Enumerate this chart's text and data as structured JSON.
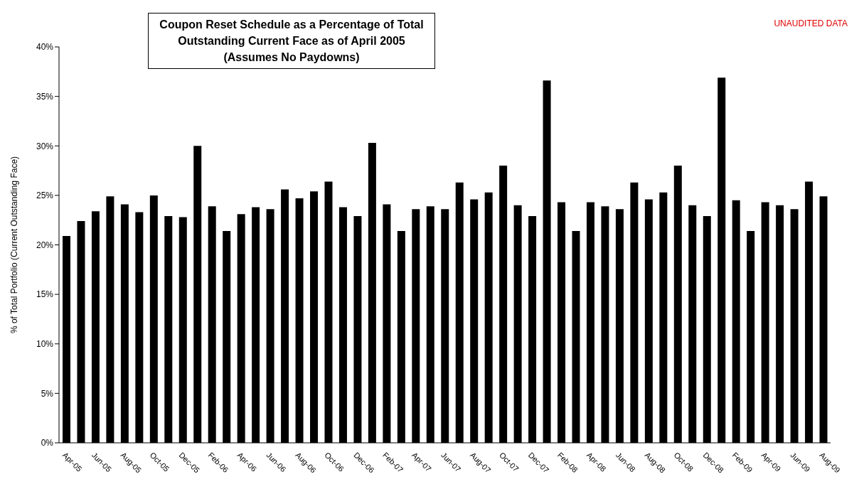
{
  "chart_data": {
    "type": "bar",
    "title": "Coupon Reset Schedule as a Percentage of Total Outstanding Current Face as of April 2005 (Assumes No Paydowns)",
    "ylabel": "% of Total Portfolio (Current Outstanding Face)",
    "annotations": [
      "UNAUDITED DATA"
    ],
    "categories": [
      "Apr-05",
      null,
      "Jun-05",
      null,
      "Aug-05",
      null,
      "Oct-05",
      null,
      "Dec-05",
      null,
      "Feb-06",
      null,
      "Apr-06",
      null,
      "Jun-06",
      null,
      "Aug-06",
      null,
      "Oct-06",
      null,
      "Dec-06",
      null,
      "Feb-07",
      null,
      "Apr-07",
      null,
      "Jun-07",
      null,
      "Aug-07",
      null,
      "Oct-07",
      null,
      "Dec-07",
      null,
      "Feb-08",
      null,
      "Apr-08",
      null,
      "Jun-08",
      null,
      "Aug-08",
      null,
      "Oct-08",
      null,
      "Dec-08",
      null,
      "Feb-09",
      null,
      "Apr-09",
      null,
      "Jun-09",
      null,
      "Aug-09"
    ],
    "values": [
      20.9,
      22.4,
      23.4,
      24.9,
      24.1,
      23.3,
      25.0,
      22.9,
      22.8,
      30.0,
      23.9,
      21.4,
      23.1,
      23.8,
      23.6,
      25.6,
      24.7,
      25.4,
      26.4,
      23.8,
      22.9,
      30.3,
      24.1,
      21.4,
      23.6,
      23.9,
      23.6,
      26.3,
      24.6,
      25.3,
      28.0,
      24.0,
      22.9,
      36.6,
      24.3,
      21.4,
      24.3,
      23.9,
      23.6,
      26.3,
      24.6,
      25.3,
      28.0,
      24.0,
      22.9,
      36.9,
      24.5,
      21.4,
      24.3,
      24.0,
      23.6,
      26.4,
      24.9
    ],
    "color": "#000000",
    "ylim": [
      0,
      40
    ],
    "yticks": [
      {
        "value": 0,
        "label": "0%"
      },
      {
        "value": 5,
        "label": "5%"
      },
      {
        "value": 10,
        "label": "10%"
      },
      {
        "value": 15,
        "label": "15%"
      },
      {
        "value": 20,
        "label": "20%"
      },
      {
        "value": 25,
        "label": "25%"
      },
      {
        "value": 30,
        "label": "30%"
      },
      {
        "value": 35,
        "label": "35%"
      },
      {
        "value": 40,
        "label": "40%"
      }
    ],
    "grid": false,
    "legend": false
  }
}
